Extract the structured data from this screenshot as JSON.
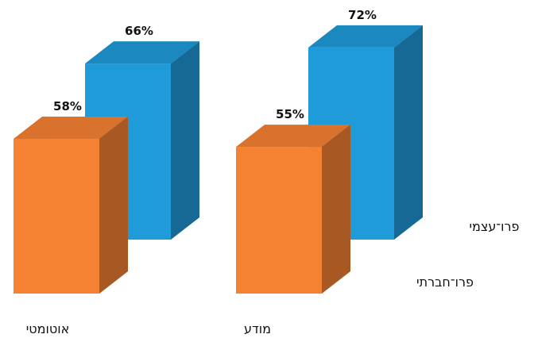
{
  "chart_data": {
    "type": "bar",
    "style": "3d-clustered",
    "categories": [
      "אוטומטי",
      "מודע"
    ],
    "series": [
      {
        "name": "פרו־חברתי",
        "values": [
          58,
          55
        ],
        "color": "#F58233"
      },
      {
        "name": "פרו־עצמי",
        "values": [
          66,
          72
        ],
        "color": "#1F9BD9"
      }
    ],
    "value_labels": {
      "0": [
        "58%",
        "55%"
      ],
      "1": [
        "66%",
        "72%"
      ]
    },
    "legend": "right",
    "grid": false,
    "ylim": [
      0,
      100
    ]
  }
}
